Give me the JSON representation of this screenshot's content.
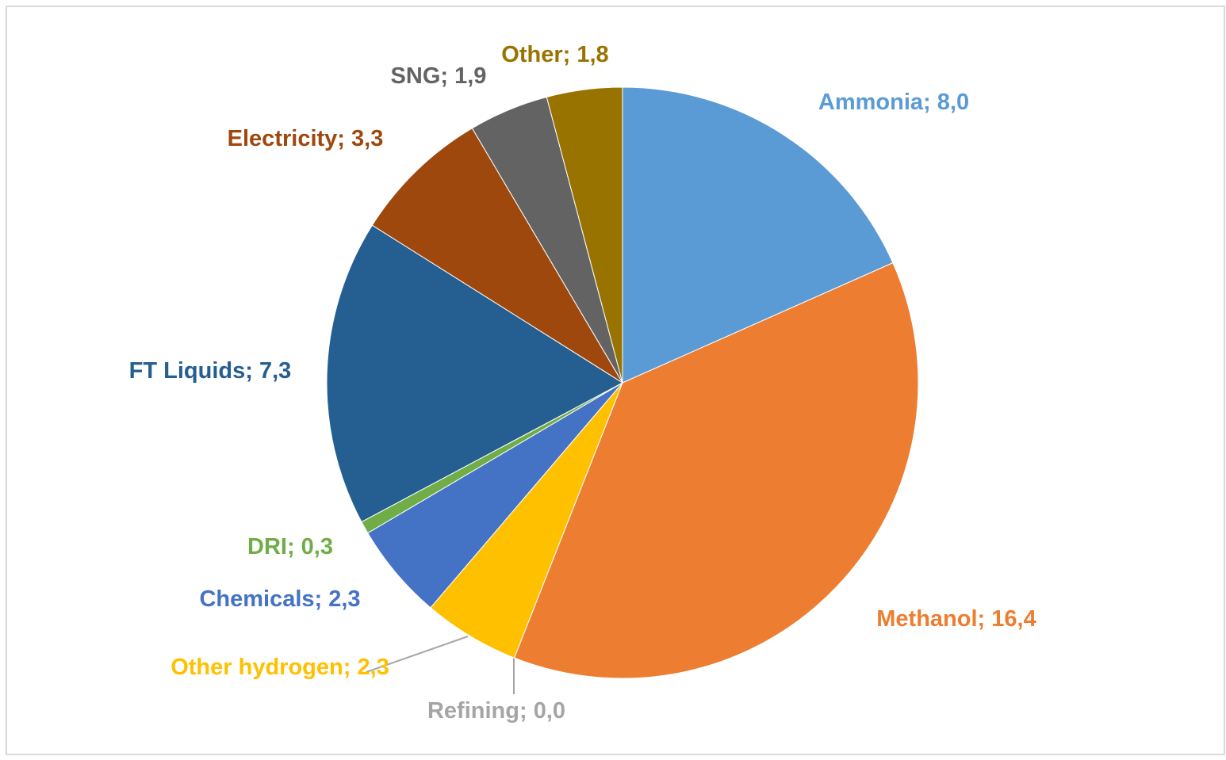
{
  "chart_data": {
    "type": "pie",
    "categories": [
      "Ammonia",
      "Methanol",
      "Refining",
      "Other hydrogen",
      "Chemicals",
      "DRI",
      "FT Liquids",
      "Electricity",
      "SNG",
      "Other"
    ],
    "values": [
      8.0,
      16.4,
      0.0,
      2.3,
      2.3,
      0.3,
      7.3,
      3.3,
      1.9,
      1.8
    ],
    "value_labels": [
      "8,0",
      "16,4",
      "0,0",
      "2,3",
      "2,3",
      "0,3",
      "7,3",
      "3,3",
      "1,9",
      "1,8"
    ],
    "label_separator": "; ",
    "colors": [
      "#5b9bd5",
      "#ed7d31",
      "#a5a5a5",
      "#ffc000",
      "#4472c4",
      "#70ad47",
      "#255e91",
      "#9e480e",
      "#636363",
      "#997300"
    ],
    "start_angle": 0,
    "direction": "clockwise"
  }
}
